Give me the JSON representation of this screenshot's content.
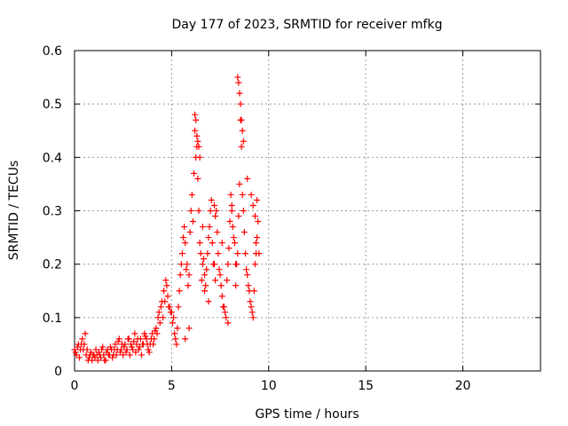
{
  "chart_data": {
    "type": "scatter",
    "title": "Day 177 of 2023, SRMTID for receiver mfkg",
    "xlabel": "GPS time / hours",
    "ylabel": "SRMTID / TECUs",
    "xlim": [
      0,
      24
    ],
    "ylim": [
      0,
      0.6
    ],
    "xticks": [
      0,
      5,
      10,
      15,
      20
    ],
    "yticks": [
      0,
      0.1,
      0.2,
      0.3,
      0.4,
      0.5,
      0.6
    ],
    "xtick_labels": [
      "0",
      "5",
      "10",
      "15",
      "20"
    ],
    "ytick_labels": [
      "0",
      "0.1",
      "0.2",
      "0.3",
      "0.4",
      "0.5",
      "0.6"
    ],
    "grid": true,
    "marker": "+",
    "series": [
      {
        "name": "SRMTID",
        "color": "#ff0000",
        "x": [
          0.0,
          0.1,
          0.2,
          0.3,
          0.4,
          0.5,
          0.6,
          0.7,
          0.8,
          0.9,
          1.0,
          1.1,
          1.2,
          1.3,
          1.4,
          1.5,
          1.6,
          1.7,
          1.8,
          1.9,
          2.0,
          2.1,
          2.2,
          2.3,
          2.4,
          2.5,
          2.6,
          2.7,
          2.8,
          2.9,
          3.0,
          3.1,
          3.2,
          3.3,
          3.4,
          3.5,
          3.6,
          3.7,
          3.8,
          3.9,
          4.0,
          4.1,
          4.2,
          4.3,
          4.4,
          4.5,
          4.6,
          4.7,
          4.8,
          4.9,
          5.0,
          5.1,
          5.2,
          5.3,
          5.4,
          5.5,
          5.6,
          5.7,
          5.8,
          5.9,
          6.0,
          6.1,
          6.2,
          6.3,
          6.4,
          6.5,
          6.6,
          6.7,
          6.8,
          6.9,
          7.0,
          7.1,
          7.2,
          7.3,
          7.4,
          7.5,
          7.6,
          7.7,
          7.8,
          7.9,
          8.0,
          8.1,
          8.2,
          8.3,
          8.4,
          8.5,
          8.6,
          8.7,
          8.8,
          8.9,
          9.0,
          9.1,
          9.2,
          9.3,
          9.4,
          9.5,
          0.05,
          0.15,
          0.25,
          0.35,
          0.45,
          0.55,
          0.65,
          0.75,
          0.85,
          0.95,
          1.05,
          1.15,
          1.25,
          1.35,
          1.45,
          1.55,
          1.65,
          1.75,
          1.85,
          1.95,
          2.05,
          2.15,
          2.25,
          2.35,
          2.45,
          2.55,
          2.65,
          2.75,
          2.85,
          2.95,
          3.05,
          3.15,
          3.25,
          3.35,
          3.45,
          3.55,
          3.65,
          3.75,
          3.85,
          3.95,
          4.05,
          4.15,
          4.25,
          4.35,
          4.45,
          4.55,
          4.65,
          4.75,
          4.85,
          4.95,
          5.05,
          5.15,
          5.25,
          5.35,
          5.45,
          5.55,
          5.65,
          5.75,
          5.85,
          5.95,
          6.05,
          6.15,
          6.25,
          6.35,
          6.45,
          6.55,
          6.65,
          6.75,
          6.85,
          6.95,
          7.05,
          7.15,
          7.25,
          7.35,
          7.45,
          7.55,
          7.65,
          7.75,
          7.85,
          7.95,
          8.05,
          8.15,
          8.25,
          8.35,
          8.45,
          8.55,
          8.65,
          8.75,
          8.85,
          8.95,
          9.05,
          9.15,
          9.25,
          9.35,
          9.45,
          6.2,
          6.25,
          6.3,
          6.35,
          6.4,
          6.45,
          8.4,
          8.45,
          8.5,
          8.55,
          8.6,
          8.65,
          8.7,
          6.6,
          7.2,
          7.25,
          9.1,
          9.2,
          9.3,
          9.35,
          5.9,
          6.7,
          7.6,
          8.1,
          8.9,
          9.4,
          5.7,
          6.9,
          7.9,
          8.3
        ],
        "y": [
          0.04,
          0.03,
          0.05,
          0.04,
          0.06,
          0.05,
          0.03,
          0.02,
          0.03,
          0.02,
          0.03,
          0.04,
          0.02,
          0.03,
          0.04,
          0.03,
          0.02,
          0.04,
          0.03,
          0.04,
          0.03,
          0.05,
          0.04,
          0.06,
          0.04,
          0.03,
          0.05,
          0.04,
          0.06,
          0.05,
          0.04,
          0.07,
          0.05,
          0.04,
          0.06,
          0.05,
          0.07,
          0.06,
          0.04,
          0.05,
          0.07,
          0.06,
          0.08,
          0.1,
          0.09,
          0.13,
          0.15,
          0.17,
          0.14,
          0.12,
          0.11,
          0.1,
          0.06,
          0.08,
          0.15,
          0.2,
          0.25,
          0.24,
          0.2,
          0.18,
          0.3,
          0.28,
          0.45,
          0.42,
          0.3,
          0.22,
          0.2,
          0.18,
          0.19,
          0.25,
          0.3,
          0.24,
          0.2,
          0.3,
          0.22,
          0.18,
          0.14,
          0.12,
          0.1,
          0.2,
          0.28,
          0.3,
          0.25,
          0.2,
          0.22,
          0.35,
          0.42,
          0.3,
          0.22,
          0.18,
          0.15,
          0.12,
          0.1,
          0.2,
          0.25,
          0.22,
          0.035,
          0.045,
          0.025,
          0.05,
          0.04,
          0.07,
          0.04,
          0.025,
          0.035,
          0.03,
          0.025,
          0.03,
          0.035,
          0.025,
          0.045,
          0.02,
          0.035,
          0.03,
          0.045,
          0.025,
          0.04,
          0.03,
          0.055,
          0.035,
          0.05,
          0.045,
          0.035,
          0.06,
          0.03,
          0.045,
          0.055,
          0.035,
          0.06,
          0.045,
          0.03,
          0.05,
          0.065,
          0.05,
          0.035,
          0.06,
          0.05,
          0.075,
          0.07,
          0.11,
          0.12,
          0.1,
          0.13,
          0.16,
          0.12,
          0.11,
          0.09,
          0.07,
          0.05,
          0.12,
          0.18,
          0.22,
          0.27,
          0.19,
          0.16,
          0.26,
          0.33,
          0.37,
          0.4,
          0.36,
          0.24,
          0.17,
          0.21,
          0.16,
          0.22,
          0.27,
          0.32,
          0.2,
          0.17,
          0.26,
          0.19,
          0.16,
          0.12,
          0.11,
          0.17,
          0.23,
          0.33,
          0.27,
          0.24,
          0.2,
          0.29,
          0.47,
          0.33,
          0.26,
          0.19,
          0.16,
          0.13,
          0.11,
          0.15,
          0.22,
          0.28,
          0.48,
          0.47,
          0.44,
          0.43,
          0.42,
          0.4,
          0.55,
          0.54,
          0.52,
          0.5,
          0.47,
          0.45,
          0.43,
          0.27,
          0.31,
          0.29,
          0.33,
          0.31,
          0.29,
          0.24,
          0.08,
          0.15,
          0.24,
          0.31,
          0.36,
          0.32,
          0.06,
          0.13,
          0.09,
          0.16
        ]
      }
    ]
  }
}
